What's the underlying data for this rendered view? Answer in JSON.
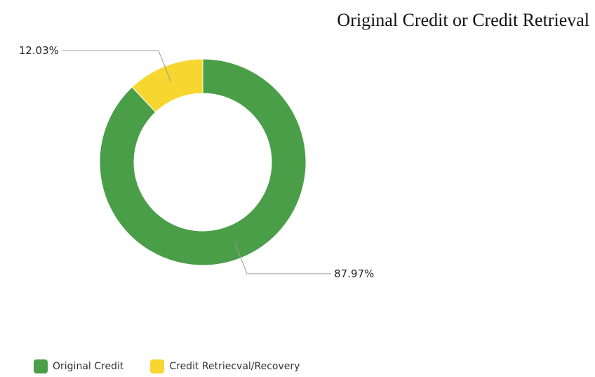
{
  "chart_data": {
    "type": "pie",
    "style": "donut",
    "title": "Original Credit or Credit Retrieval",
    "slices": [
      {
        "label": "Original Credit",
        "value": 87.97,
        "display": "87.97%",
        "color": "#4a9e48"
      },
      {
        "label": "Credit Retriecval/Recovery",
        "value": 12.03,
        "display": "12.03%",
        "color": "#f7d630"
      }
    ],
    "legend_position": "bottom-left"
  }
}
